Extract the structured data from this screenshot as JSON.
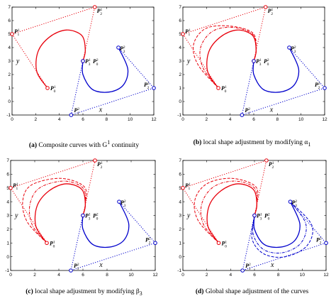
{
  "colors": {
    "red": "#e8000b",
    "blue": "#0000cc",
    "axis": "#000000"
  },
  "axes": {
    "xlabel": "x",
    "ylabel": "y",
    "xlim": [
      0,
      12
    ],
    "ylim": [
      -1,
      7
    ],
    "xticks": [
      "0",
      "2",
      "4",
      "6",
      "8",
      "10",
      "12"
    ],
    "yticks": [
      "-1",
      "0",
      "1",
      "2",
      "3",
      "4",
      "5",
      "6",
      "7"
    ]
  },
  "point_labels": [
    {
      "id": "p10",
      "base": "P",
      "sup": "1",
      "sub": "0"
    },
    {
      "id": "p11",
      "base": "P",
      "sup": "1",
      "sub": "1"
    },
    {
      "id": "p12",
      "base": "P",
      "sup": "1",
      "sub": "2"
    },
    {
      "id": "p13",
      "base": "P",
      "sup": "1",
      "sub": "3"
    },
    {
      "id": "p20",
      "base": "P",
      "sup": "2",
      "sub": "0"
    },
    {
      "id": "p21",
      "base": "P",
      "sup": "2",
      "sub": "1"
    },
    {
      "id": "p22",
      "base": "P",
      "sup": "2",
      "sub": "2"
    },
    {
      "id": "p23",
      "base": "P",
      "sup": "2",
      "sub": "3"
    }
  ],
  "panels": [
    {
      "tag": "(a)",
      "caption": "Composite curves with G",
      "sup": "1",
      "tail": " continuity"
    },
    {
      "tag": "(b)",
      "caption": "local shape adjustment by modifying α",
      "sup": "",
      "tail": "1"
    },
    {
      "tag": "(c)",
      "caption": "local shape adjustment by modifying β",
      "sup": "",
      "tail": "3"
    },
    {
      "tag": "(d)",
      "caption": "Global shape adjustment of the curves",
      "sup": "",
      "tail": ""
    }
  ],
  "chart_data": [
    {
      "type": "line",
      "title": "",
      "xlabel": "x",
      "ylabel": "y",
      "xlim": [
        0,
        12
      ],
      "ylim": [
        -1,
        7
      ],
      "control_polygon_1": {
        "color": "red",
        "style": "dotted",
        "points": [
          [
            3,
            1
          ],
          [
            0,
            5
          ],
          [
            7,
            7
          ],
          [
            6,
            3
          ]
        ]
      },
      "control_polygon_2": {
        "color": "blue",
        "style": "dotted",
        "points": [
          [
            6,
            3
          ],
          [
            5,
            -1
          ],
          [
            12,
            1
          ],
          [
            9,
            4
          ]
        ]
      },
      "curves": [
        {
          "color": "red",
          "style": "solid",
          "points": [
            [
              3,
              1
            ],
            [
              2.1,
              2.2
            ],
            [
              2.2,
              3.7
            ],
            [
              3.2,
              4.8
            ],
            [
              4.6,
              5.3
            ],
            [
              5.9,
              4.9
            ],
            [
              6.2,
              3.8
            ],
            [
              6,
              3
            ]
          ]
        },
        {
          "color": "blue",
          "style": "solid",
          "points": [
            [
              6,
              3
            ],
            [
              6,
              2
            ],
            [
              6.8,
              0.9
            ],
            [
              8.2,
              0.7
            ],
            [
              9.4,
              1.2
            ],
            [
              9.8,
              2.4
            ],
            [
              9,
              4
            ]
          ]
        }
      ]
    },
    {
      "type": "line",
      "xlabel": "x",
      "ylabel": "y",
      "xlim": [
        0,
        12
      ],
      "ylim": [
        -1,
        7
      ],
      "control_polygon_1": {
        "color": "red",
        "style": "dotted",
        "points": [
          [
            3,
            1
          ],
          [
            0,
            5
          ],
          [
            7,
            7
          ],
          [
            6,
            3
          ]
        ]
      },
      "control_polygon_2": {
        "color": "blue",
        "style": "dotted",
        "points": [
          [
            6,
            3
          ],
          [
            5,
            -1
          ],
          [
            12,
            1
          ],
          [
            9,
            4
          ]
        ]
      },
      "curves": [
        {
          "color": "red",
          "style": "solid",
          "points": [
            [
              3,
              1
            ],
            [
              2.1,
              2.2
            ],
            [
              2.2,
              3.7
            ],
            [
              3.2,
              4.8
            ],
            [
              4.6,
              5.3
            ],
            [
              5.9,
              4.9
            ],
            [
              6.2,
              3.8
            ],
            [
              6,
              3
            ]
          ]
        },
        {
          "color": "red",
          "style": "dashdot",
          "points": [
            [
              3,
              1
            ],
            [
              1.7,
              2.5
            ],
            [
              1.5,
              4.0
            ],
            [
              2.5,
              5.2
            ],
            [
              4.2,
              5.5
            ],
            [
              5.9,
              5.0
            ],
            [
              6.2,
              3.8
            ],
            [
              6,
              3
            ]
          ]
        },
        {
          "color": "red",
          "style": "dashed",
          "points": [
            [
              3,
              1
            ],
            [
              1.3,
              2.7
            ],
            [
              0.9,
              4.2
            ],
            [
              1.9,
              5.4
            ],
            [
              3.9,
              5.6
            ],
            [
              5.9,
              5.1
            ],
            [
              6.2,
              3.8
            ],
            [
              6,
              3
            ]
          ]
        },
        {
          "color": "blue",
          "style": "solid",
          "points": [
            [
              6,
              3
            ],
            [
              6,
              2
            ],
            [
              6.8,
              0.9
            ],
            [
              8.2,
              0.7
            ],
            [
              9.4,
              1.2
            ],
            [
              9.8,
              2.4
            ],
            [
              9,
              4
            ]
          ]
        }
      ]
    },
    {
      "type": "line",
      "xlabel": "x",
      "ylabel": "y",
      "xlim": [
        0,
        12
      ],
      "ylim": [
        -1,
        7
      ],
      "control_polygon_1": {
        "color": "red",
        "style": "dotted",
        "points": [
          [
            3,
            1
          ],
          [
            0,
            5
          ],
          [
            7,
            7
          ],
          [
            6,
            3
          ]
        ]
      },
      "control_polygon_2": {
        "color": "blue",
        "style": "dotted",
        "points": [
          [
            6,
            3
          ],
          [
            5,
            -1
          ],
          [
            12,
            1
          ],
          [
            9,
            4
          ]
        ]
      },
      "curves": [
        {
          "color": "red",
          "style": "solid",
          "points": [
            [
              3,
              1
            ],
            [
              2.1,
              2.2
            ],
            [
              2.2,
              3.7
            ],
            [
              3.2,
              4.8
            ],
            [
              4.6,
              5.3
            ],
            [
              5.9,
              4.9
            ],
            [
              6.2,
              3.8
            ],
            [
              6,
              3
            ]
          ]
        },
        {
          "color": "red",
          "style": "dashdot",
          "points": [
            [
              3,
              1
            ],
            [
              1.8,
              2.3
            ],
            [
              1.6,
              3.8
            ],
            [
              2.4,
              5.0
            ],
            [
              4.4,
              5.5
            ],
            [
              6.0,
              5.0
            ],
            [
              6.2,
              3.8
            ],
            [
              6,
              3
            ]
          ]
        },
        {
          "color": "red",
          "style": "dashed",
          "points": [
            [
              3,
              1
            ],
            [
              1.4,
              2.5
            ],
            [
              1.0,
              4.0
            ],
            [
              1.7,
              5.2
            ],
            [
              4.1,
              5.7
            ],
            [
              6.1,
              5.1
            ],
            [
              6.2,
              3.8
            ],
            [
              6,
              3
            ]
          ]
        },
        {
          "color": "blue",
          "style": "solid",
          "points": [
            [
              6,
              3
            ],
            [
              6,
              2
            ],
            [
              6.8,
              0.9
            ],
            [
              8.2,
              0.7
            ],
            [
              9.4,
              1.2
            ],
            [
              9.8,
              2.4
            ],
            [
              9,
              4
            ]
          ]
        }
      ]
    },
    {
      "type": "line",
      "xlabel": "x",
      "ylabel": "y",
      "xlim": [
        0,
        12
      ],
      "ylim": [
        -1,
        7
      ],
      "control_polygon_1": {
        "color": "red",
        "style": "dotted",
        "points": [
          [
            3,
            1
          ],
          [
            0,
            5
          ],
          [
            7,
            7
          ],
          [
            6,
            3
          ]
        ]
      },
      "control_polygon_2": {
        "color": "blue",
        "style": "dotted",
        "points": [
          [
            6,
            3
          ],
          [
            5,
            -1
          ],
          [
            12,
            1
          ],
          [
            9,
            4
          ]
        ]
      },
      "curves": [
        {
          "color": "red",
          "style": "solid",
          "points": [
            [
              3,
              1
            ],
            [
              2.1,
              2.2
            ],
            [
              2.2,
              3.7
            ],
            [
              3.2,
              4.8
            ],
            [
              4.6,
              5.3
            ],
            [
              5.9,
              4.9
            ],
            [
              6.2,
              3.8
            ],
            [
              6,
              3
            ]
          ]
        },
        {
          "color": "red",
          "style": "dashdot",
          "points": [
            [
              3,
              1
            ],
            [
              1.7,
              2.4
            ],
            [
              1.6,
              3.9
            ],
            [
              2.6,
              5.1
            ],
            [
              4.4,
              5.5
            ],
            [
              6.0,
              5.0
            ],
            [
              6.2,
              3.8
            ],
            [
              6,
              3
            ]
          ]
        },
        {
          "color": "red",
          "style": "dashed",
          "points": [
            [
              3,
              1
            ],
            [
              1.3,
              2.6
            ],
            [
              1.0,
              4.1
            ],
            [
              2.0,
              5.3
            ],
            [
              4.1,
              5.7
            ],
            [
              6.1,
              5.1
            ],
            [
              6.2,
              3.8
            ],
            [
              6,
              3
            ]
          ]
        },
        {
          "color": "blue",
          "style": "solid",
          "points": [
            [
              6,
              3
            ],
            [
              6,
              2
            ],
            [
              6.8,
              0.9
            ],
            [
              8.2,
              0.7
            ],
            [
              9.4,
              1.2
            ],
            [
              9.8,
              2.4
            ],
            [
              9,
              4
            ]
          ]
        },
        {
          "color": "blue",
          "style": "dashdot",
          "points": [
            [
              6,
              3
            ],
            [
              5.9,
              1.6
            ],
            [
              6.8,
              0.5
            ],
            [
              8.4,
              0.3
            ],
            [
              9.9,
              1.0
            ],
            [
              10.3,
              2.4
            ],
            [
              9,
              4
            ]
          ]
        },
        {
          "color": "blue",
          "style": "dashed",
          "points": [
            [
              6,
              3
            ],
            [
              5.8,
              1.3
            ],
            [
              6.8,
              0.2
            ],
            [
              8.6,
              0.0
            ],
            [
              10.4,
              0.8
            ],
            [
              10.8,
              2.3
            ],
            [
              9,
              4
            ]
          ]
        }
      ]
    }
  ]
}
